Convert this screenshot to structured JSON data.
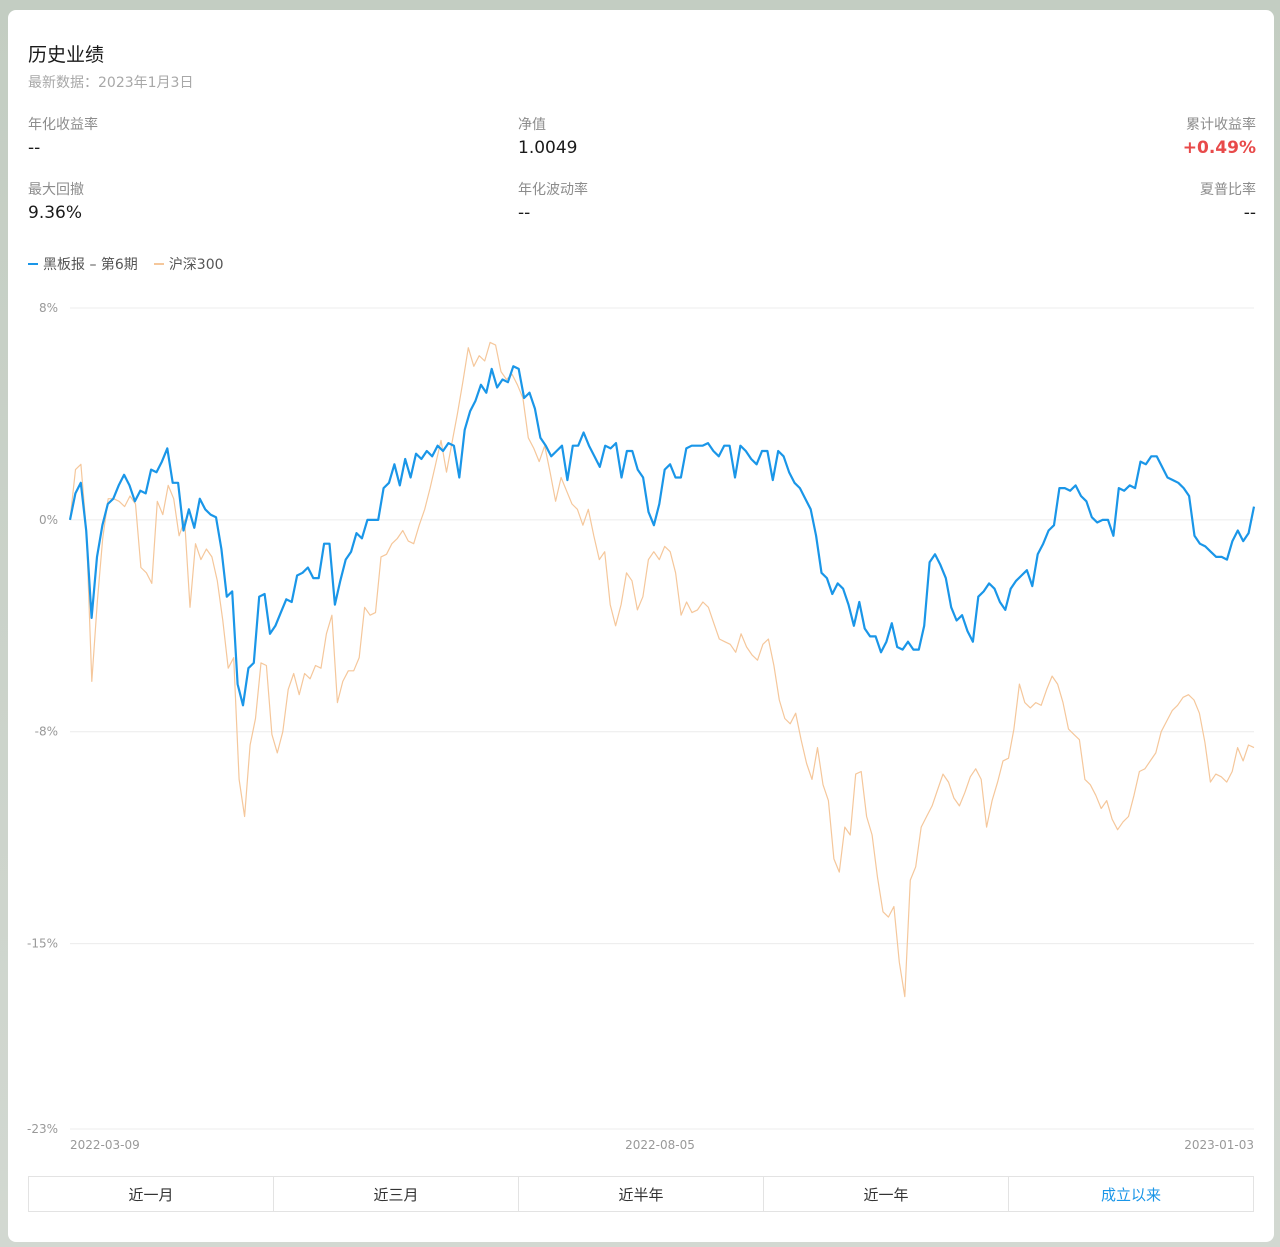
{
  "header": {
    "title": "历史业绩",
    "subtitle": "最新数据：2023年1月3日"
  },
  "metrics": {
    "annualized_return": {
      "label": "年化收益率",
      "value": "--"
    },
    "nav": {
      "label": "净值",
      "value": "1.0049"
    },
    "cumulative_return": {
      "label": "累计收益率",
      "value": "+0.49%"
    },
    "max_drawdown": {
      "label": "最大回撤",
      "value": "9.36%"
    },
    "annualized_volatility": {
      "label": "年化波动率",
      "value": "--"
    },
    "sharpe_ratio": {
      "label": "夏普比率",
      "value": "--"
    }
  },
  "colors": {
    "fund": "#1a96e8",
    "benchmark": "#f5c79b",
    "positive": "#e84a4a",
    "active_tab": "#1a96e8"
  },
  "chart_data": {
    "type": "line",
    "ylim": [
      -23,
      8
    ],
    "y_ticks": [
      "8%",
      "0%",
      "-8%",
      "-15%",
      "-23%"
    ],
    "x_ticks": [
      "2022-03-09",
      "2022-08-05",
      "2023-01-03"
    ],
    "grid": true,
    "legend_position": "top-left",
    "series": [
      {
        "name": "黑板报 – 第6期",
        "values": [
          0,
          1,
          1.4,
          -0.4,
          -3.7,
          -1.4,
          -0.2,
          0.6,
          0.8,
          1.3,
          1.7,
          1.3,
          0.7,
          1.1,
          1,
          1.9,
          1.8,
          2.2,
          2.7,
          1.4,
          1.4,
          -0.4,
          0.4,
          -0.3,
          0.8,
          0.4,
          0.2,
          0.1,
          -1.1,
          -2.9,
          -2.7,
          -6.2,
          -7,
          -5.6,
          -5.4,
          -2.9,
          -2.8,
          -4.3,
          -4,
          -3.5,
          -3,
          -3.1,
          -2.1,
          -2,
          -1.8,
          -2.2,
          -2.2,
          -0.9,
          -0.9,
          -3.2,
          -2.3,
          -1.5,
          -1.2,
          -0.5,
          -0.7,
          0,
          0,
          0,
          1.2,
          1.4,
          2.1,
          1.3,
          2.3,
          1.6,
          2.5,
          2.3,
          2.6,
          2.4,
          2.8,
          2.6,
          2.9,
          2.8,
          1.6,
          3.4,
          4.1,
          4.5,
          5.1,
          4.8,
          5.7,
          5,
          5.3,
          5.2,
          5.8,
          5.7,
          4.6,
          4.8,
          4.2,
          3.1,
          2.8,
          2.4,
          2.6,
          2.8,
          1.5,
          2.8,
          2.8,
          3.3,
          2.8,
          2.4,
          2,
          2.8,
          2.7,
          2.9,
          1.6,
          2.6,
          2.6,
          1.9,
          1.6,
          0.3,
          -0.2,
          0.6,
          1.9,
          2.1,
          1.6,
          1.6,
          2.7,
          2.8,
          2.8,
          2.8,
          2.9,
          2.6,
          2.4,
          2.8,
          2.8,
          1.6,
          2.8,
          2.6,
          2.3,
          2.1,
          2.6,
          2.6,
          1.5,
          2.6,
          2.4,
          1.8,
          1.4,
          1.2,
          0.8,
          0.4,
          -0.6,
          -2,
          -2.2,
          -2.8,
          -2.4,
          -2.6,
          -3.2,
          -4,
          -3.1,
          -4.1,
          -4.4,
          -4.4,
          -5,
          -4.6,
          -3.9,
          -4.8,
          -4.9,
          -4.6,
          -4.9,
          -4.9,
          -4,
          -1.6,
          -1.3,
          -1.7,
          -2.2,
          -3.3,
          -3.8,
          -3.6,
          -4.2,
          -4.6,
          -2.9,
          -2.7,
          -2.4,
          -2.6,
          -3.1,
          -3.4,
          -2.6,
          -2.3,
          -2.1,
          -1.9,
          -2.5,
          -1.3,
          -0.9,
          -0.4,
          -0.2,
          1.2,
          1.2,
          1.1,
          1.3,
          0.9,
          0.7,
          0.1,
          -0.1,
          0,
          0,
          -0.6,
          1.2,
          1.1,
          1.3,
          1.2,
          2.2,
          2.1,
          2.4,
          2.4,
          2,
          1.6,
          1.5,
          1.4,
          1.2,
          0.9,
          -0.6,
          -0.9,
          -1,
          -1.2,
          -1.4,
          -1.4,
          -1.5,
          -0.8,
          -0.4,
          -0.8,
          -0.5,
          0.5
        ]
      },
      {
        "name": "沪深300",
        "values": [
          0,
          1.9,
          2.1,
          -0.4,
          -6.1,
          -3.1,
          -0.7,
          0.8,
          0.8,
          0.7,
          0.5,
          0.9,
          0.6,
          -1.8,
          -2,
          -2.4,
          0.7,
          0.2,
          1.3,
          0.8,
          -0.6,
          0,
          -3.3,
          -0.9,
          -1.5,
          -1.1,
          -1.4,
          -2.3,
          -3.8,
          -5.6,
          -5.2,
          -9.8,
          -11.2,
          -8.5,
          -7.5,
          -5.4,
          -5.5,
          -8.1,
          -8.8,
          -8,
          -6.4,
          -5.8,
          -6.6,
          -5.8,
          -6,
          -5.5,
          -5.6,
          -4.3,
          -3.6,
          -6.9,
          -6.1,
          -5.7,
          -5.7,
          -5.2,
          -3.3,
          -3.6,
          -3.5,
          -1.4,
          -1.3,
          -0.9,
          -0.7,
          -0.4,
          -0.8,
          -0.9,
          -0.2,
          0.4,
          1.2,
          2.1,
          3,
          1.8,
          2.9,
          4,
          5.2,
          6.5,
          5.8,
          6.2,
          6,
          6.7,
          6.6,
          5.6,
          5.3,
          5.5,
          5.1,
          4.6,
          3.1,
          2.7,
          2.2,
          2.8,
          1.8,
          0.7,
          1.6,
          1.1,
          0.6,
          0.4,
          -0.2,
          0.4,
          -0.6,
          -1.5,
          -1.2,
          -3.2,
          -4,
          -3.2,
          -2,
          -2.3,
          -3.4,
          -2.9,
          -1.5,
          -1.2,
          -1.5,
          -1,
          -1.2,
          -2,
          -3.6,
          -3.1,
          -3.5,
          -3.4,
          -3.1,
          -3.3,
          -3.9,
          -4.5,
          -4.6,
          -4.7,
          -5,
          -4.3,
          -4.8,
          -5.1,
          -5.3,
          -4.7,
          -4.5,
          -5.5,
          -6.8,
          -7.5,
          -7.7,
          -7.3,
          -8.3,
          -9.2,
          -9.8,
          -8.6,
          -10,
          -10.6,
          -12.8,
          -13.3,
          -11.6,
          -11.9,
          -9.6,
          -9.5,
          -11.2,
          -11.9,
          -13.5,
          -14.8,
          -15,
          -14.6,
          -16.7,
          -18,
          -13.6,
          -13.1,
          -11.6,
          -11.2,
          -10.8,
          -10.2,
          -9.6,
          -9.9,
          -10.5,
          -10.8,
          -10.3,
          -9.7,
          -9.4,
          -9.8,
          -11.6,
          -10.6,
          -9.9,
          -9.1,
          -9,
          -7.9,
          -6.2,
          -6.9,
          -7.1,
          -6.9,
          -7,
          -6.4,
          -5.9,
          -6.2,
          -6.9,
          -7.9,
          -8.1,
          -8.3,
          -9.8,
          -10,
          -10.4,
          -10.9,
          -10.6,
          -11.3,
          -11.7,
          -11.4,
          -11.2,
          -10.4,
          -9.5,
          -9.4,
          -9.1,
          -8.8,
          -8,
          -7.6,
          -7.2,
          -7,
          -6.7,
          -6.6,
          -6.8,
          -7.3,
          -8.4,
          -9.9,
          -9.6,
          -9.7,
          -9.9,
          -9.5,
          -8.6,
          -9.1,
          -8.5,
          -8.6
        ]
      }
    ]
  },
  "tabs": [
    {
      "label": "近一月"
    },
    {
      "label": "近三月"
    },
    {
      "label": "近半年"
    },
    {
      "label": "近一年"
    },
    {
      "label": "成立以来",
      "active": true
    }
  ]
}
